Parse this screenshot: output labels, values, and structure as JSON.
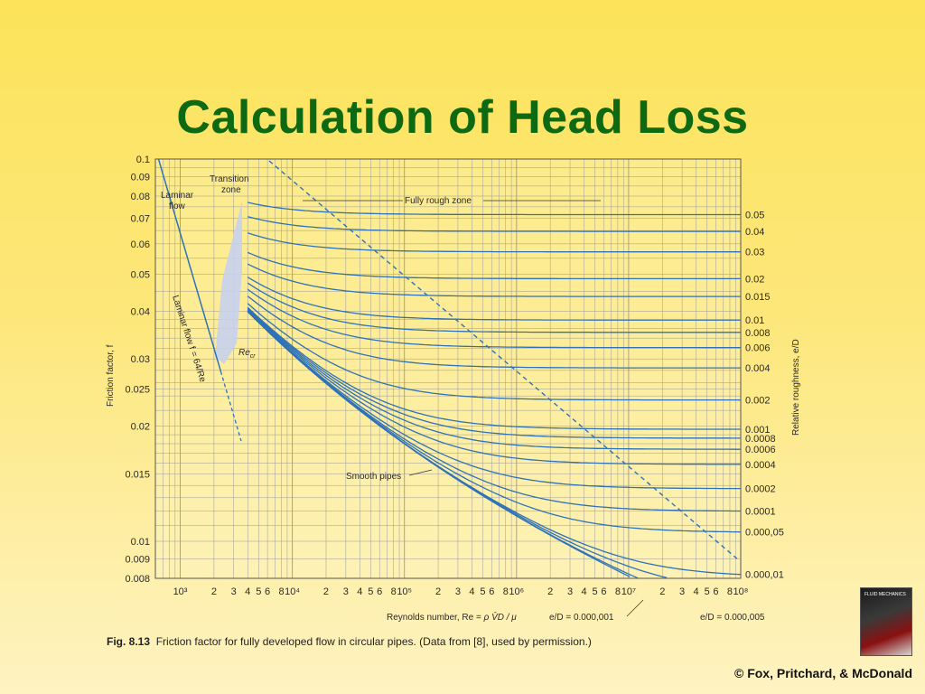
{
  "slide": {
    "title": "Calculation of Head Loss",
    "caption_fig": "Fig. 8.13",
    "caption_text": "Friction factor for fully developed flow in circular pipes. (Data from [8], used by permission.)",
    "copyright": "© Fox, Pritchard, & McDonald"
  },
  "colors": {
    "title": "#0d6a12",
    "curve": "#2f72b8",
    "grid": "#9a9a9a",
    "transition_fill": "#c6d2ee"
  },
  "chart_data": {
    "type": "line",
    "scale": "log-log",
    "grid": true,
    "xlim": [
      600,
      100000000
    ],
    "ylim": [
      0.008,
      0.1
    ],
    "ylabel_left": "Friction factor, f",
    "ylabel_right": "Relative roughness, e/D",
    "xlabel_prefix": "Reynolds number, Re =",
    "xlabel_formula": "ρ V̄D / μ",
    "y_ticks": [
      "0.1",
      "0.09",
      "0.08",
      "0.07",
      "0.06",
      "0.05",
      "0.04",
      "0.03",
      "0.025",
      "0.02",
      "0.015",
      "0.01",
      "0.009",
      "0.008"
    ],
    "y_tick_values": [
      0.1,
      0.09,
      0.08,
      0.07,
      0.06,
      0.05,
      0.04,
      0.03,
      0.025,
      0.02,
      0.015,
      0.01,
      0.009,
      0.008
    ],
    "x_decade_labels": [
      "10³",
      "10⁴",
      "10⁵",
      "10⁶",
      "10⁷",
      "10⁸"
    ],
    "x_minor_labels": [
      "2",
      "3",
      "4",
      "5",
      "6",
      "8"
    ],
    "right_labels": [
      "0.05",
      "0.04",
      "0.03",
      "0.02",
      "0.015",
      "0.01",
      "0.008",
      "0.006",
      "0.004",
      "0.002",
      "0.001",
      "0.0008",
      "0.0006",
      "0.0004",
      "0.0002",
      "0.0001",
      "0.000,05",
      "0.000,01"
    ],
    "roughness_series": [
      0.05,
      0.04,
      0.03,
      0.02,
      0.015,
      0.01,
      0.008,
      0.006,
      0.004,
      0.002,
      0.001,
      0.0008,
      0.0006,
      0.0004,
      0.0002,
      0.0001,
      5e-05,
      1e-05,
      5e-06,
      1e-06,
      0
    ],
    "annotations": {
      "laminar": "Laminar flow",
      "transition": "Transition zone",
      "fully_rough": "Fully rough zone",
      "smooth": "Smooth pipes",
      "re_cr": "Re",
      "re_cr_sub": "cr",
      "laminar_eq": "Laminar flow f = 64/Re",
      "ed_000001": "e/D = 0.000,001",
      "ed_000005": "e/D = 0.000,005"
    }
  }
}
